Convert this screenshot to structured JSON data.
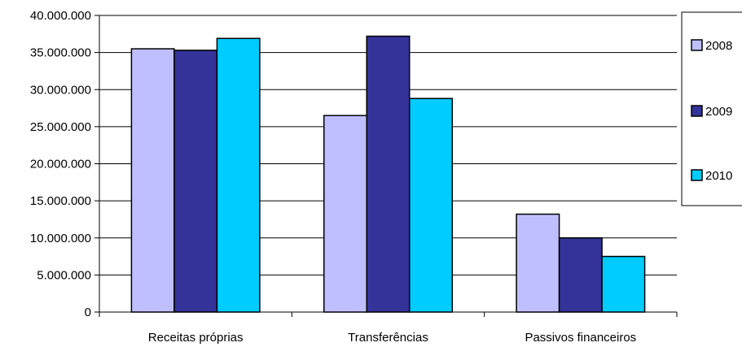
{
  "chart_data": {
    "type": "bar",
    "title": "",
    "xlabel": "",
    "ylabel": "",
    "categories": [
      "Receitas próprias",
      "Transferências",
      "Passivos financeiros"
    ],
    "series": [
      {
        "name": "2008",
        "values": [
          35500000,
          26500000,
          13200000
        ],
        "color": "#bfbfff"
      },
      {
        "name": "2009",
        "values": [
          35300000,
          37200000,
          10000000
        ],
        "color": "#333399"
      },
      {
        "name": "2010",
        "values": [
          36900000,
          28800000,
          7500000
        ],
        "color": "#00ccff"
      }
    ],
    "ylim": [
      0,
      40000000
    ],
    "yticks": [
      0,
      5000000,
      10000000,
      15000000,
      20000000,
      25000000,
      30000000,
      35000000,
      40000000
    ],
    "ytick_labels": [
      "0",
      "5.000.000",
      "10.000.000",
      "15.000.000",
      "20.000.000",
      "25.000.000",
      "30.000.000",
      "35.000.000",
      "40.000.000"
    ],
    "grid": true,
    "legend_position": "right"
  }
}
